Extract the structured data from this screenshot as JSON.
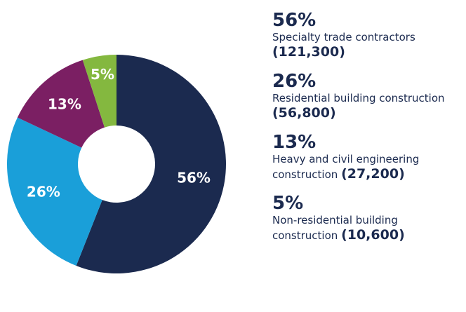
{
  "chart_data": {
    "type": "pie",
    "donut": true,
    "categories": [
      "Specialty trade contractors",
      "Residential building construction",
      "Heavy and civil engineering construction",
      "Non-residential building construction"
    ],
    "values": [
      56,
      26,
      13,
      5
    ],
    "value_labels": [
      "56%",
      "26%",
      "13%",
      "5%"
    ],
    "counts": [
      "(121,300)",
      "(56,800)",
      "(27,200)",
      "(10,600)"
    ],
    "colors": [
      "#1b2a4f",
      "#1a9fd9",
      "#7b1f63",
      "#84b83f"
    ]
  }
}
